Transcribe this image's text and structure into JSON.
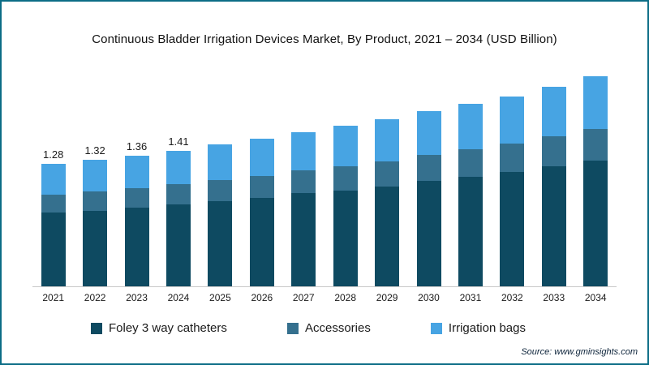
{
  "title": "Continuous Bladder Irrigation Devices Market, By Product, 2021 – 2034 (USD Billion)",
  "source": "Source: www.gminsights.com",
  "colors": {
    "border": "#0b6d86",
    "foley": "#0e4a61",
    "accessories": "#35708e",
    "irrigation": "#47a4e3"
  },
  "chart_data": {
    "type": "bar",
    "stacked": true,
    "title": "Continuous Bladder Irrigation Devices Market, By Product, 2021 – 2034 (USD Billion)",
    "xlabel": "",
    "ylabel": "USD Billion",
    "ylim": [
      0,
      2.3
    ],
    "grid": false,
    "legend_position": "bottom",
    "categories": [
      "2021",
      "2022",
      "2023",
      "2024",
      "2025",
      "2026",
      "2027",
      "2028",
      "2029",
      "2030",
      "2031",
      "2032",
      "2033",
      "2034"
    ],
    "series": [
      {
        "name": "Foley 3 way catheters",
        "color": "#0e4a61",
        "values": [
          0.77,
          0.79,
          0.82,
          0.85,
          0.89,
          0.92,
          0.97,
          1.0,
          1.04,
          1.1,
          1.14,
          1.19,
          1.25,
          1.31
        ]
      },
      {
        "name": "Accessories",
        "color": "#35708e",
        "values": [
          0.19,
          0.2,
          0.2,
          0.21,
          0.22,
          0.23,
          0.24,
          0.25,
          0.26,
          0.27,
          0.29,
          0.3,
          0.31,
          0.33
        ]
      },
      {
        "name": "Irrigation bags",
        "color": "#47a4e3",
        "values": [
          0.32,
          0.33,
          0.34,
          0.35,
          0.37,
          0.39,
          0.4,
          0.42,
          0.44,
          0.46,
          0.47,
          0.49,
          0.52,
          0.55
        ]
      }
    ],
    "totals": [
      1.28,
      1.32,
      1.36,
      1.41,
      1.48,
      1.54,
      1.61,
      1.67,
      1.74,
      1.83,
      1.9,
      1.98,
      2.08,
      2.19
    ],
    "bar_labels": [
      "1.28",
      "1.32",
      "1.36",
      "1.41",
      "",
      "",
      "",
      "",
      "",
      "",
      "",
      "",
      "",
      ""
    ]
  },
  "legend": [
    {
      "label": "Foley 3 way catheters",
      "color": "#0e4a61"
    },
    {
      "label": "Accessories",
      "color": "#35708e"
    },
    {
      "label": "Irrigation bags",
      "color": "#47a4e3"
    }
  ]
}
